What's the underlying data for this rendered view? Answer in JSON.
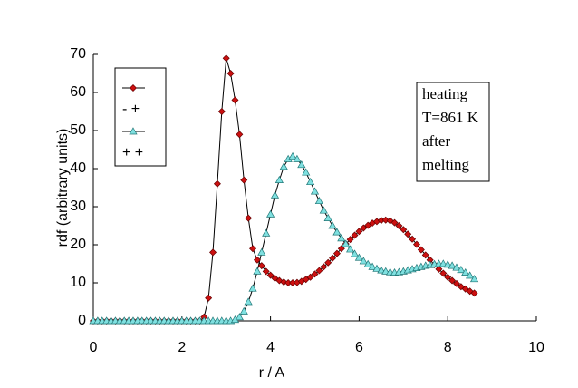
{
  "chart_data": {
    "type": "line",
    "xlabel": "r / A",
    "ylabel": "rdf (arbitrary units)",
    "annotation": [
      "heating",
      "T=861 K",
      "after",
      "melting"
    ],
    "x": [
      0,
      0.1,
      0.2,
      0.3,
      0.4,
      0.5,
      0.6,
      0.7,
      0.8,
      0.9,
      1,
      1.1,
      1.2,
      1.3,
      1.4,
      1.5,
      1.6,
      1.7,
      1.8,
      1.9,
      2,
      2.1,
      2.2,
      2.3,
      2.4,
      2.5,
      2.6,
      2.7,
      2.8,
      2.9,
      3,
      3.1,
      3.2,
      3.3,
      3.4,
      3.5,
      3.6,
      3.7,
      3.8,
      3.9,
      4,
      4.1,
      4.2,
      4.3,
      4.4,
      4.5,
      4.6,
      4.7,
      4.8,
      4.9,
      5,
      5.1,
      5.2,
      5.3,
      5.4,
      5.5,
      5.6,
      5.7,
      5.8,
      5.9,
      6,
      6.1,
      6.2,
      6.3,
      6.4,
      6.5,
      6.6,
      6.7,
      6.8,
      6.9,
      7,
      7.1,
      7.2,
      7.3,
      7.4,
      7.5,
      7.6,
      7.7,
      7.8,
      7.9,
      8,
      8.1,
      8.2,
      8.3,
      8.4,
      8.5,
      8.6
    ],
    "series": [
      {
        "name": "- +",
        "color": "#cc1010",
        "marker": "diamond",
        "values": [
          0,
          0,
          0,
          0,
          0,
          0,
          0,
          0,
          0,
          0,
          0,
          0,
          0,
          0,
          0,
          0,
          0,
          0,
          0,
          0,
          0,
          0,
          0,
          0,
          0,
          1,
          6,
          18,
          36,
          55,
          69,
          65,
          58,
          49,
          37,
          27,
          19,
          16,
          14.5,
          13,
          12,
          11.2,
          10.6,
          10.2,
          10,
          10,
          10.1,
          10.4,
          10.9,
          11.5,
          12.3,
          13.2,
          14.2,
          15.3,
          16.5,
          17.7,
          19,
          20.2,
          21.4,
          22.5,
          23.5,
          24.4,
          25.1,
          25.7,
          26.1,
          26.4,
          26.5,
          26.3,
          25.8,
          25,
          24,
          22.8,
          21.5,
          20.1,
          18.7,
          17.3,
          16,
          14.8,
          13.6,
          12.5,
          11.5,
          10.6,
          9.8,
          9,
          8.4,
          7.8,
          7.3
        ]
      },
      {
        "name": "+ +",
        "color": "#7fe0e0",
        "marker": "triangle",
        "values": [
          0,
          0,
          0,
          0,
          0,
          0,
          0,
          0,
          0,
          0,
          0,
          0,
          0,
          0,
          0,
          0,
          0,
          0,
          0,
          0,
          0,
          0,
          0,
          0,
          0,
          0,
          0,
          0,
          0,
          0,
          0,
          0,
          0.3,
          1,
          2.5,
          5,
          8.5,
          13,
          18,
          23,
          28,
          33,
          37,
          40.5,
          42.5,
          43.2,
          42.5,
          41,
          39,
          36.5,
          34,
          31.5,
          29,
          27,
          25,
          23.3,
          21.7,
          20.2,
          18.8,
          17.6,
          16.6,
          15.7,
          14.9,
          14.2,
          13.7,
          13.3,
          13,
          12.8,
          12.7,
          12.8,
          13,
          13.3,
          13.6,
          13.9,
          14.2,
          14.5,
          14.7,
          14.9,
          15,
          15,
          14.8,
          14.5,
          14,
          13.4,
          12.7,
          11.9,
          11
        ]
      }
    ],
    "xlim": [
      0,
      10
    ],
    "xticks": [
      0,
      2,
      4,
      6,
      8,
      10
    ],
    "ylim": [
      0,
      70
    ],
    "yticks": [
      0,
      10,
      20,
      30,
      40,
      50,
      60,
      70
    ],
    "grid": false,
    "legend": "upper left"
  }
}
